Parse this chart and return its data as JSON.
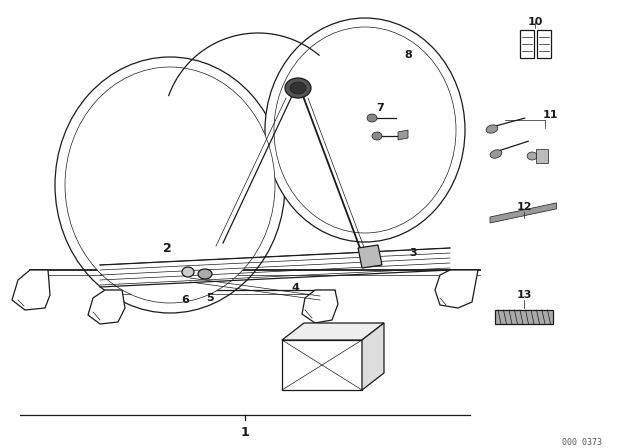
{
  "bg_color": "#ffffff",
  "line_color": "#1a1a1a",
  "footer_text": "000 0373",
  "figsize": [
    6.4,
    4.48
  ],
  "dpi": 100,
  "lw_thin": 0.5,
  "lw_med": 0.9,
  "lw_thick": 1.3
}
